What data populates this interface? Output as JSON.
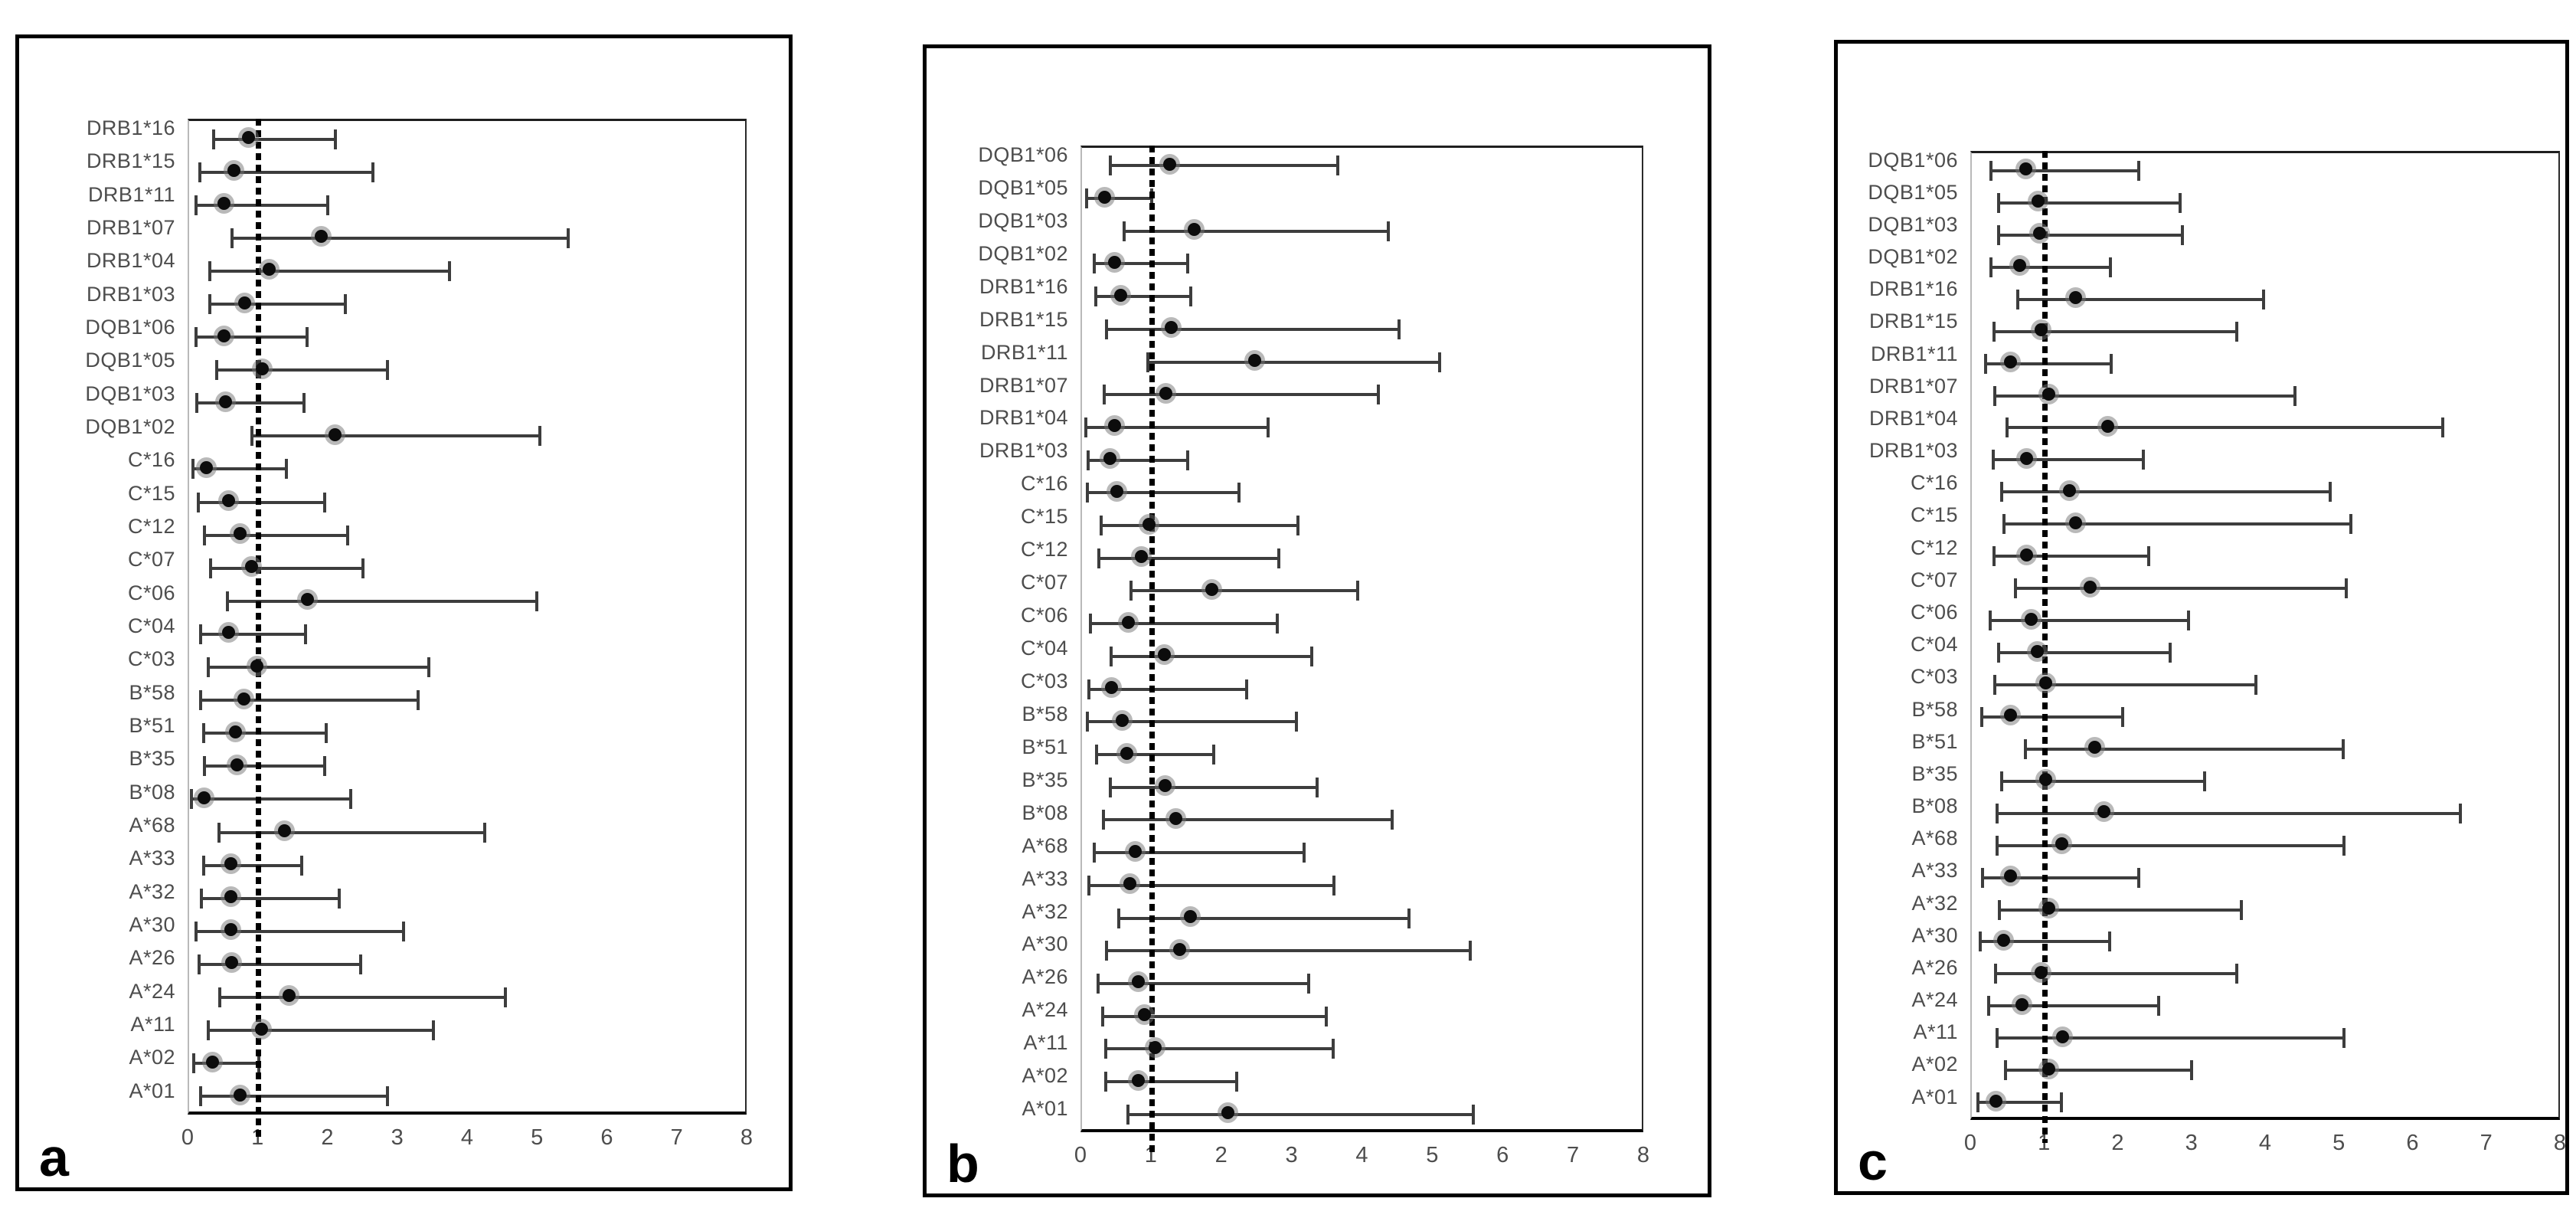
{
  "figure": {
    "background": "#ffffff",
    "colors": {
      "marker": "#0c0c0c",
      "marker_halo": "rgba(115,115,115,0.5)",
      "error_bar": "#3d3d3d",
      "reference_line": "#000000",
      "label_text": "#4d4d4d",
      "panel_border": "#000000"
    },
    "panels": [
      {
        "letter": "a"
      },
      {
        "letter": "b"
      },
      {
        "letter": "c"
      }
    ]
  },
  "chart_data": [
    {
      "type": "scatter",
      "subtype": "forest-plot",
      "panel": "a",
      "title": "",
      "xlabel": "",
      "ylabel": "",
      "xlim": [
        0,
        8
      ],
      "x_ticks": [
        "0",
        "1",
        "2",
        "3",
        "4",
        "5",
        "6",
        "7",
        "8"
      ],
      "reference_line_x": 1,
      "grid": false,
      "legend": "none",
      "categories": [
        "DRB1*16",
        "DRB1*15",
        "DRB1*11",
        "DRB1*07",
        "DRB1*04",
        "DRB1*03",
        "DQB1*06",
        "DQB1*05",
        "DQB1*03",
        "DQB1*02",
        "C*16",
        "C*15",
        "C*12",
        "C*07",
        "C*06",
        "C*04",
        "C*03",
        "B*58",
        "B*51",
        "B*35",
        "B*08",
        "A*68",
        "A*33",
        "A*32",
        "A*30",
        "A*26",
        "A*24",
        "A*11",
        "A*02",
        "A*01"
      ],
      "series": [
        {
          "name": "odds_ratio",
          "values": [
            0.85,
            0.65,
            0.5,
            1.9,
            1.15,
            0.8,
            0.5,
            1.05,
            0.52,
            2.1,
            0.25,
            0.57,
            0.73,
            0.9,
            1.7,
            0.57,
            0.98,
            0.79,
            0.67,
            0.69,
            0.22,
            1.37,
            0.6,
            0.6,
            0.6,
            0.61,
            1.44,
            1.04,
            0.34,
            0.73
          ]
        },
        {
          "name": "ci_lower",
          "values": [
            0.35,
            0.15,
            0.1,
            0.62,
            0.3,
            0.3,
            0.1,
            0.4,
            0.11,
            0.9,
            0.05,
            0.13,
            0.22,
            0.31,
            0.55,
            0.16,
            0.28,
            0.16,
            0.21,
            0.22,
            0.03,
            0.43,
            0.21,
            0.18,
            0.1,
            0.14,
            0.44,
            0.28,
            0.07,
            0.16
          ]
        },
        {
          "name": "ci_upper",
          "values": [
            2.1,
            2.65,
            2.0,
            5.45,
            3.75,
            2.25,
            1.7,
            2.85,
            1.65,
            5.05,
            1.4,
            1.95,
            2.28,
            2.5,
            5.0,
            1.67,
            3.45,
            3.3,
            1.97,
            1.95,
            2.33,
            4.25,
            1.62,
            2.16,
            3.09,
            2.47,
            4.55,
            3.51,
            1.0,
            2.85
          ]
        }
      ]
    },
    {
      "type": "scatter",
      "subtype": "forest-plot",
      "panel": "b",
      "title": "",
      "xlabel": "",
      "ylabel": "",
      "xlim": [
        0,
        8
      ],
      "x_ticks": [
        "0",
        "1",
        "2",
        "3",
        "4",
        "5",
        "6",
        "7",
        "8"
      ],
      "reference_line_x": 1,
      "grid": false,
      "legend": "none",
      "categories": [
        "DQB1*06",
        "DQB1*05",
        "DQB1*03",
        "DQB1*02",
        "DRB1*16",
        "DRB1*15",
        "DRB1*11",
        "DRB1*07",
        "DRB1*04",
        "DRB1*03",
        "C*16",
        "C*15",
        "C*12",
        "C*07",
        "C*06",
        "C*04",
        "C*03",
        "B*58",
        "B*51",
        "B*35",
        "B*08",
        "A*68",
        "A*33",
        "A*32",
        "A*30",
        "A*26",
        "A*24",
        "A*11",
        "A*02",
        "A*01"
      ],
      "series": [
        {
          "name": "odds_ratio",
          "values": [
            1.25,
            0.32,
            1.6,
            0.47,
            0.55,
            1.28,
            2.47,
            1.2,
            0.46,
            0.4,
            0.5,
            0.96,
            0.85,
            1.85,
            0.66,
            1.18,
            0.42,
            0.57,
            0.64,
            1.19,
            1.34,
            0.76,
            0.68,
            1.55,
            1.39,
            0.8,
            0.89,
            1.04,
            0.8,
            2.08
          ]
        },
        {
          "name": "ci_lower",
          "values": [
            0.4,
            0.07,
            0.6,
            0.17,
            0.2,
            0.35,
            0.94,
            0.32,
            0.05,
            0.09,
            0.08,
            0.27,
            0.24,
            0.7,
            0.12,
            0.42,
            0.1,
            0.08,
            0.21,
            0.41,
            0.31,
            0.18,
            0.1,
            0.52,
            0.35,
            0.23,
            0.3,
            0.34,
            0.34,
            0.66
          ]
        },
        {
          "name": "ci_upper",
          "values": [
            3.65,
            1.0,
            4.38,
            1.51,
            1.55,
            4.53,
            5.11,
            4.24,
            2.66,
            1.51,
            2.24,
            3.09,
            2.81,
            3.94,
            2.79,
            3.28,
            2.35,
            3.06,
            1.88,
            3.36,
            4.43,
            3.17,
            3.6,
            4.67,
            5.55,
            3.24,
            3.49,
            3.59,
            2.21,
            5.59
          ]
        }
      ]
    },
    {
      "type": "scatter",
      "subtype": "forest-plot",
      "panel": "c",
      "title": "",
      "xlabel": "",
      "ylabel": "",
      "xlim": [
        0,
        8
      ],
      "x_ticks": [
        "0",
        "1",
        "2",
        "3",
        "4",
        "5",
        "6",
        "7",
        "8"
      ],
      "reference_line_x": 1,
      "grid": false,
      "legend": "none",
      "categories": [
        "DQB1*06",
        "DQB1*05",
        "DQB1*03",
        "DQB1*02",
        "DRB1*16",
        "DRB1*15",
        "DRB1*11",
        "DRB1*07",
        "DRB1*04",
        "DRB1*03",
        "C*16",
        "C*15",
        "C*12",
        "C*07",
        "C*06",
        "C*04",
        "C*03",
        "B*58",
        "B*51",
        "B*35",
        "B*08",
        "A*68",
        "A*33",
        "A*32",
        "A*30",
        "A*26",
        "A*24",
        "A*11",
        "A*02",
        "A*01"
      ],
      "series": [
        {
          "name": "odds_ratio",
          "values": [
            0.74,
            0.9,
            0.92,
            0.65,
            1.42,
            0.94,
            0.53,
            1.05,
            1.85,
            0.75,
            1.33,
            1.41,
            0.75,
            1.61,
            0.81,
            0.89,
            1.01,
            0.53,
            1.68,
            1.01,
            1.8,
            1.23,
            0.53,
            1.05,
            0.43,
            0.94,
            0.68,
            1.24,
            1.05,
            0.33
          ]
        },
        {
          "name": "ci_lower",
          "values": [
            0.26,
            0.37,
            0.37,
            0.26,
            0.63,
            0.3,
            0.19,
            0.31,
            0.48,
            0.29,
            0.41,
            0.44,
            0.3,
            0.6,
            0.25,
            0.37,
            0.31,
            0.14,
            0.73,
            0.41,
            0.34,
            0.34,
            0.15,
            0.38,
            0.11,
            0.32,
            0.23,
            0.34,
            0.46,
            0.08
          ]
        },
        {
          "name": "ci_upper",
          "values": [
            2.28,
            2.84,
            2.87,
            1.89,
            3.98,
            3.61,
            1.9,
            4.41,
            6.42,
            2.34,
            4.89,
            5.17,
            2.41,
            5.11,
            2.96,
            2.71,
            3.87,
            2.06,
            5.07,
            3.18,
            6.66,
            5.08,
            2.28,
            3.68,
            1.88,
            3.61,
            2.55,
            5.08,
            3.0,
            1.22
          ]
        }
      ]
    }
  ]
}
